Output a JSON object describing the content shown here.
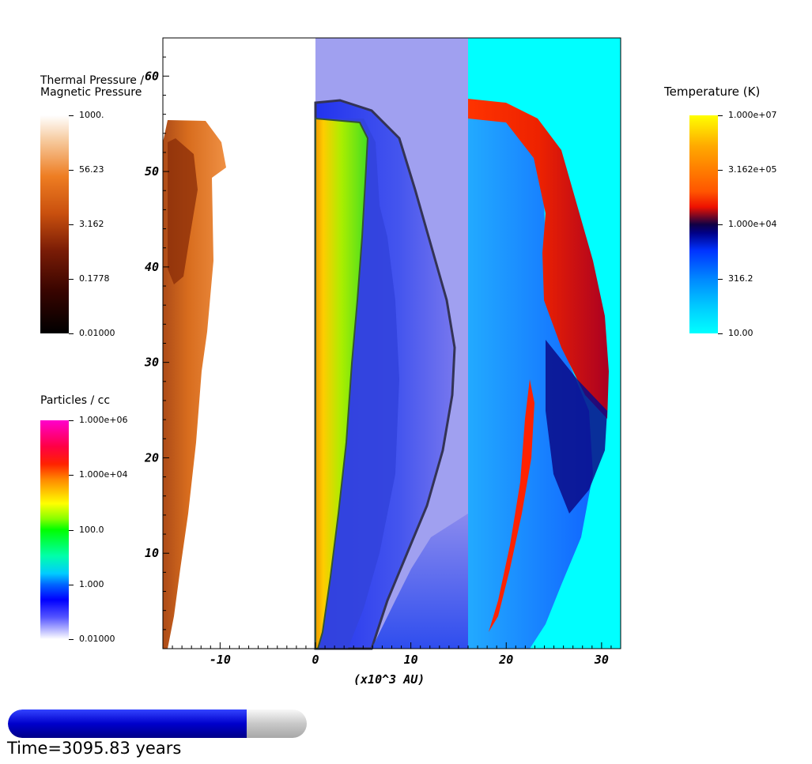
{
  "chart_data": {
    "type": "heatmap",
    "xlabel": "(x10^3 AU)",
    "x_ticks": [
      "-10",
      "0",
      "10",
      "20",
      "30"
    ],
    "x_tick_values": [
      -10,
      0,
      10,
      20,
      30
    ],
    "y_ticks": [
      "10",
      "20",
      "30",
      "40",
      "50",
      "60"
    ],
    "y_tick_values": [
      10,
      20,
      30,
      40,
      50,
      60
    ],
    "xlim": [
      -16,
      32
    ],
    "ylim": [
      0,
      64
    ],
    "panels": [
      {
        "name": "Thermal Pressure / Magnetic Pressure",
        "x_range": [
          -16,
          0
        ]
      },
      {
        "name": "Particles / cc",
        "x_range": [
          0,
          16
        ]
      },
      {
        "name": "Temperature (K)",
        "x_range": [
          16,
          32
        ]
      }
    ]
  },
  "colorbars": {
    "pressure": {
      "title_line1": "Thermal Pressure /",
      "title_line2": "Magnetic Pressure",
      "labels": [
        "1000.",
        "56.23",
        "3.162",
        "0.1778",
        "0.01000"
      ]
    },
    "density": {
      "title": "Particles / cc",
      "labels": [
        "1.000e+06",
        "1.000e+04",
        "100.0",
        "1.000",
        "0.01000"
      ]
    },
    "temperature": {
      "title": "Temperature (K)",
      "labels": [
        "1.000e+07",
        "3.162e+05",
        "1.000e+04",
        "316.2",
        "10.00"
      ]
    }
  },
  "time": {
    "label": "Time=3095.83 years",
    "progress": 0.8
  },
  "colors": {
    "progress_fill": "#0000cc",
    "density_bg": "#a0a0f0",
    "temperature_bg": "#00ffff"
  }
}
